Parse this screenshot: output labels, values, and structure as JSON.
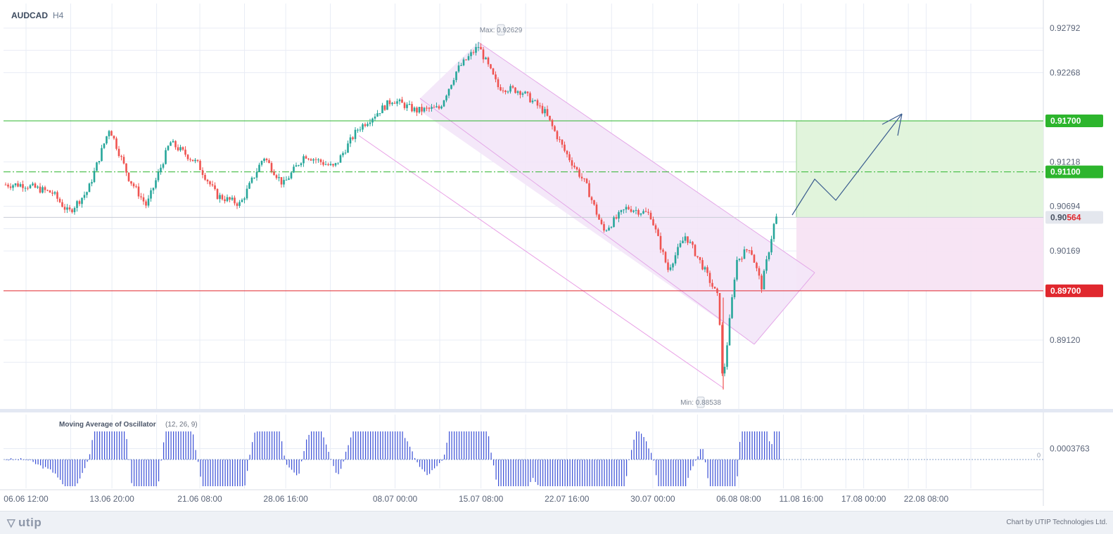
{
  "symbol": "AUDCAD",
  "timeframe": "H4",
  "price_axis": {
    "labels": [
      "0.92792",
      "0.92268",
      "0.91218",
      "0.90694",
      "0.90169",
      "0.89120"
    ],
    "range": [
      0.884,
      0.932
    ]
  },
  "time_axis": {
    "labels": [
      "06.06 12:00",
      "13.06 20:00",
      "21.06 08:00",
      "28.06 16:00",
      "08.07 00:00",
      "15.07 08:00",
      "22.07 16:00",
      "30.07 00:00",
      "06.08 08:00",
      "11.08 16:00",
      "17.08 00:00",
      "22.08 08:00"
    ]
  },
  "markers": {
    "max_label": "Max: 0.92629",
    "min_label": "Min: 0.88538"
  },
  "levels": {
    "take_profit": {
      "value": "0.91700",
      "color": "#2db52d"
    },
    "entry": {
      "value": "0.91100",
      "color": "#2db52d"
    },
    "current": {
      "prefix": "0.90",
      "suffix": "564",
      "suffix_color": "#e0282e"
    },
    "stop_loss": {
      "value": "0.89700",
      "color": "#e0282e"
    }
  },
  "oscillator": {
    "name": "Moving Average of Oscillator",
    "params": "(12, 26, 9)",
    "value_label": "0.0003763",
    "zero_label": "0",
    "bar_color": "#3a4fd6"
  },
  "colors": {
    "up": "#26a69a",
    "down": "#ef5350",
    "channel_fill": "#f3e6f8",
    "channel_line": "#e4a8e8",
    "grid": "#e8ecf5",
    "arrow": "#3a5c8e"
  },
  "footer": {
    "brand": "utip",
    "credit": "Chart by UTIP Technologies Ltd."
  },
  "chart_data": {
    "type": "candlestick",
    "symbol": "AUDCAD",
    "interval": "H4",
    "max": 0.92629,
    "min": 0.88538,
    "last": 0.90564,
    "horizontal_levels": [
      0.917,
      0.911,
      0.897
    ],
    "path_anchors": [
      {
        "t": "06.06 12:00",
        "p": 0.9095
      },
      {
        "t": "09.06 00:00",
        "p": 0.9085
      },
      {
        "t": "10.06 08:00",
        "p": 0.9062
      },
      {
        "t": "12.06 00:00",
        "p": 0.9088
      },
      {
        "t": "13.06 20:00",
        "p": 0.9162
      },
      {
        "t": "15.06 12:00",
        "p": 0.9102
      },
      {
        "t": "17.06 00:00",
        "p": 0.907
      },
      {
        "t": "19.06 00:00",
        "p": 0.9145
      },
      {
        "t": "21.06 08:00",
        "p": 0.912
      },
      {
        "t": "23.06 00:00",
        "p": 0.9082
      },
      {
        "t": "25.06 00:00",
        "p": 0.9072
      },
      {
        "t": "27.06 00:00",
        "p": 0.9128
      },
      {
        "t": "28.06 16:00",
        "p": 0.9095
      },
      {
        "t": "30.06 12:00",
        "p": 0.913
      },
      {
        "t": "03.07 00:00",
        "p": 0.9115
      },
      {
        "t": "05.07 00:00",
        "p": 0.916
      },
      {
        "t": "08.07 00:00",
        "p": 0.9195
      },
      {
        "t": "10.07 00:00",
        "p": 0.9182
      },
      {
        "t": "12.07 00:00",
        "p": 0.9185
      },
      {
        "t": "13.07 12:00",
        "p": 0.923
      },
      {
        "t": "15.07 08:00",
        "p": 0.9258
      },
      {
        "t": "17.07 00:00",
        "p": 0.921
      },
      {
        "t": "19.07 00:00",
        "p": 0.9205
      },
      {
        "t": "21.07 00:00",
        "p": 0.918
      },
      {
        "t": "22.07 16:00",
        "p": 0.9135
      },
      {
        "t": "24.07 12:00",
        "p": 0.9095
      },
      {
        "t": "26.07 00:00",
        "p": 0.904
      },
      {
        "t": "28.07 00:00",
        "p": 0.9068
      },
      {
        "t": "30.07 00:00",
        "p": 0.906
      },
      {
        "t": "31.07 12:00",
        "p": 0.8995
      },
      {
        "t": "02.08 00:00",
        "p": 0.9035
      },
      {
        "t": "03.08 12:00",
        "p": 0.8998
      },
      {
        "t": "04.08 20:00",
        "p": 0.896
      },
      {
        "t": "05.08 04:00",
        "p": 0.886
      },
      {
        "t": "06.08 08:00",
        "p": 0.9005
      },
      {
        "t": "07.08 12:00",
        "p": 0.9022
      },
      {
        "t": "08.08 12:00",
        "p": 0.8975
      },
      {
        "t": "09.08 16:00",
        "p": 0.9056
      }
    ]
  }
}
